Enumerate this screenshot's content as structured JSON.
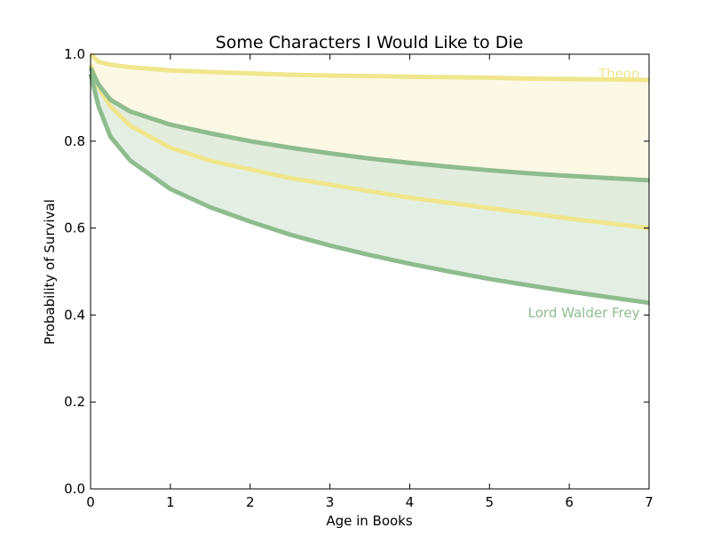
{
  "chart_data": {
    "type": "area",
    "title": "Some Characters I Would Like to Die",
    "xlabel": "Age in Books",
    "ylabel": "Probability of Survival",
    "xlim": [
      0,
      7
    ],
    "ylim": [
      0,
      1.0
    ],
    "xticks": [
      "0",
      "1",
      "2",
      "3",
      "4",
      "5",
      "6",
      "7"
    ],
    "yticks": [
      "0.0",
      "0.2",
      "0.4",
      "0.6",
      "0.8",
      "1.0"
    ],
    "grid": false,
    "legend": "none",
    "x": [
      0,
      0.1,
      0.25,
      0.5,
      1,
      1.5,
      2,
      2.5,
      3,
      3.5,
      4,
      4.5,
      5,
      5.5,
      6,
      6.5,
      7
    ],
    "series": [
      {
        "name": "Theon",
        "color": "#f0e68c",
        "fill": "#faf6dc",
        "upper": [
          1.0,
          0.983,
          0.976,
          0.97,
          0.963,
          0.959,
          0.956,
          0.953,
          0.951,
          0.95,
          0.948,
          0.947,
          0.946,
          0.944,
          0.943,
          0.942,
          0.941
        ],
        "lower": [
          0.975,
          0.925,
          0.88,
          0.835,
          0.785,
          0.755,
          0.735,
          0.715,
          0.7,
          0.685,
          0.67,
          0.658,
          0.646,
          0.634,
          0.622,
          0.611,
          0.6
        ]
      },
      {
        "name": "Lord Walder Frey",
        "color": "#8fbc8f",
        "fill": "#dbe9db",
        "upper": [
          0.968,
          0.93,
          0.895,
          0.868,
          0.838,
          0.818,
          0.8,
          0.785,
          0.772,
          0.76,
          0.75,
          0.741,
          0.733,
          0.726,
          0.72,
          0.715,
          0.71
        ],
        "lower": [
          0.955,
          0.88,
          0.81,
          0.755,
          0.69,
          0.648,
          0.615,
          0.585,
          0.56,
          0.538,
          0.518,
          0.5,
          0.483,
          0.468,
          0.454,
          0.441,
          0.428
        ]
      }
    ],
    "annotations": [
      {
        "text": "Theon",
        "x": 6.95,
        "y": 0.955,
        "color": "#f0e68c"
      },
      {
        "text": "Lord Walder Frey",
        "x": 6.95,
        "y": 0.405,
        "color": "#8fbc8f"
      }
    ]
  }
}
